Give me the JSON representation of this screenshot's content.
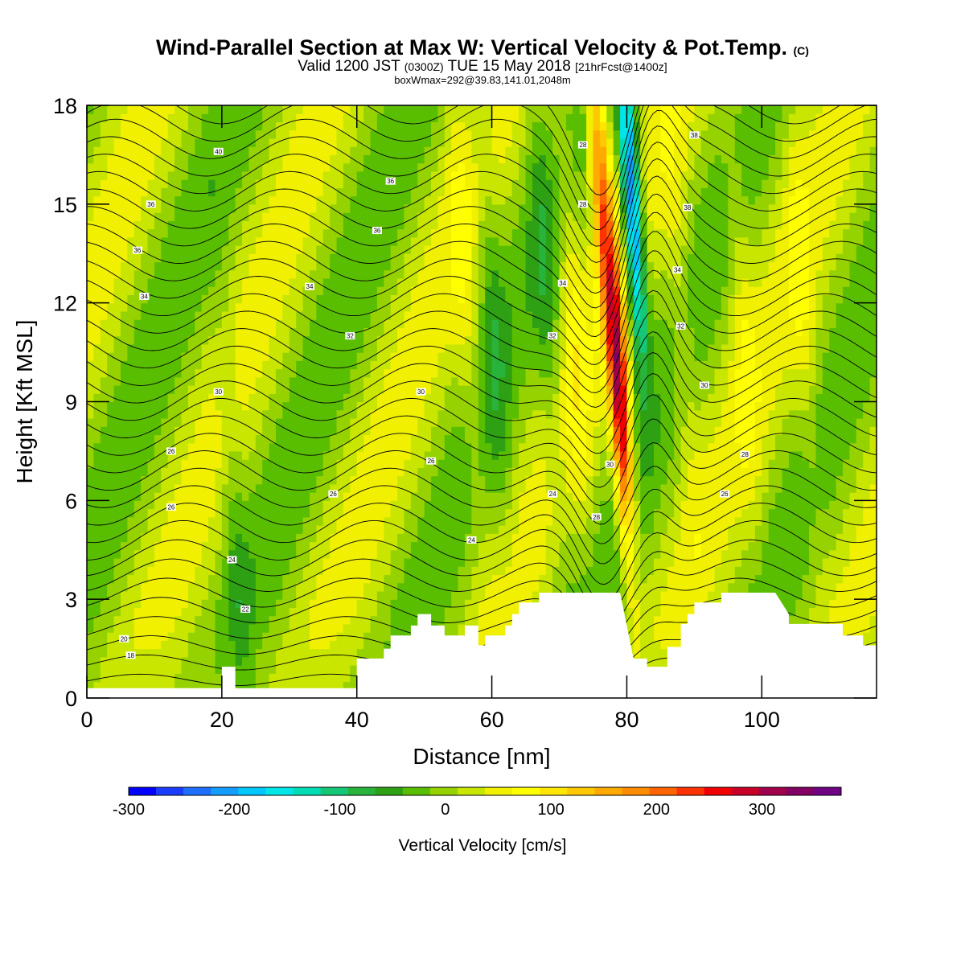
{
  "header": {
    "title": "Wind-Parallel Section at Max W: Vertical Velocity & Pot.Temp.",
    "title_mark": "(C)",
    "valid_prefix": "Valid 1200 JST",
    "valid_utc": "(0300Z)",
    "valid_date": "TUE 15 May 2018",
    "valid_fcst": "[21hrFcst@1400z]",
    "boxinfo": "boxWmax=292@39.83,141.01,2048m"
  },
  "chart_data": {
    "type": "heatmap",
    "xlabel": "Distance [nm]",
    "ylabel": "Height [Kft MSL]",
    "xlim": [
      0,
      117
    ],
    "ylim": [
      0,
      18
    ],
    "xticks": [
      0,
      20,
      40,
      60,
      80,
      100
    ],
    "yticks": [
      0,
      3,
      6,
      9,
      12,
      15,
      18
    ],
    "terrain": [
      [
        0,
        0.3
      ],
      [
        20,
        0.3
      ],
      [
        20,
        0.95
      ],
      [
        22,
        0.95
      ],
      [
        22,
        0.3
      ],
      [
        24,
        0.3
      ],
      [
        24,
        0.3
      ],
      [
        38,
        0.3
      ],
      [
        38,
        0.3
      ],
      [
        40,
        0.3
      ],
      [
        40,
        1.2
      ],
      [
        44,
        1.2
      ],
      [
        44,
        1.5
      ],
      [
        45,
        1.5
      ],
      [
        45,
        1.9
      ],
      [
        48,
        1.9
      ],
      [
        48,
        2.2
      ],
      [
        49,
        2.2
      ],
      [
        49,
        2.55
      ],
      [
        51,
        2.55
      ],
      [
        51,
        2.2
      ],
      [
        53,
        2.2
      ],
      [
        53,
        1.9
      ],
      [
        56,
        1.9
      ],
      [
        56,
        2.2
      ],
      [
        58,
        2.2
      ],
      [
        58,
        1.6
      ],
      [
        59,
        1.6
      ],
      [
        59,
        1.9
      ],
      [
        62,
        1.9
      ],
      [
        62,
        2.2
      ],
      [
        63,
        2.2
      ],
      [
        63,
        2.55
      ],
      [
        64,
        2.55
      ],
      [
        64,
        2.9
      ],
      [
        67,
        2.9
      ],
      [
        67,
        3.2
      ],
      [
        79,
        3.2
      ],
      [
        81,
        1.2
      ],
      [
        83,
        1.2
      ],
      [
        83,
        0.95
      ],
      [
        86,
        0.95
      ],
      [
        86,
        1.55
      ],
      [
        88,
        1.55
      ],
      [
        88,
        2.25
      ],
      [
        89,
        2.25
      ],
      [
        89,
        2.55
      ],
      [
        90,
        2.55
      ],
      [
        90,
        2.9
      ],
      [
        94,
        2.9
      ],
      [
        94,
        3.2
      ],
      [
        102,
        3.2
      ],
      [
        104,
        2.55
      ],
      [
        104,
        2.25
      ],
      [
        112,
        2.25
      ],
      [
        112,
        1.9
      ],
      [
        115,
        1.9
      ],
      [
        115,
        1.6
      ],
      [
        117,
        1.6
      ]
    ],
    "w_colorbar": {
      "title": "Vertical Velocity [cm/s]",
      "tick_labels": [
        "-300",
        "-200",
        "-100",
        "0",
        "100",
        "200",
        "300"
      ],
      "tick_values": [
        -300,
        -200,
        -100,
        0,
        100,
        200,
        300
      ],
      "range": [
        -300,
        375
      ],
      "colors": [
        "#0000ff",
        "#1a3cff",
        "#1e6eff",
        "#139dff",
        "#00c8ff",
        "#00e6e6",
        "#00dcb4",
        "#14c878",
        "#28b43c",
        "#2ea014",
        "#5abe00",
        "#96d200",
        "#c8e600",
        "#f0f000",
        "#ffff00",
        "#ffe600",
        "#ffc800",
        "#ffaa00",
        "#ff8c00",
        "#ff6400",
        "#ff3200",
        "#f00000",
        "#c80028",
        "#a0004b",
        "#820064",
        "#6e0082"
      ]
    },
    "w_features": [
      {
        "x": 79,
        "z": 9,
        "w": 292
      },
      {
        "x": 76,
        "z": 16,
        "w": 180
      },
      {
        "x": 80.8,
        "z": 15,
        "w": -260
      },
      {
        "x": 22,
        "z": 5,
        "w": -60
      },
      {
        "x": 56,
        "z": 12,
        "w": 60
      },
      {
        "x": 60,
        "z": 12,
        "w": -70
      },
      {
        "x": 68,
        "z": 12,
        "w": -70
      },
      {
        "x": 72,
        "z": 12,
        "w": 80
      },
      {
        "x": 88,
        "z": 12,
        "w": 60
      },
      {
        "x": 97,
        "z": 12,
        "w": 60
      },
      {
        "x": 106,
        "z": 12,
        "w": 60
      }
    ],
    "theta_labels": [
      {
        "x": 19.5,
        "z": 16.6,
        "text": "40"
      },
      {
        "x": 9.5,
        "z": 15.0,
        "text": "36"
      },
      {
        "x": 45,
        "z": 15.7,
        "text": "36"
      },
      {
        "x": 7.5,
        "z": 13.6,
        "text": "36"
      },
      {
        "x": 43,
        "z": 14.2,
        "text": "36"
      },
      {
        "x": 8.5,
        "z": 12.2,
        "text": "34"
      },
      {
        "x": 33,
        "z": 12.5,
        "text": "34"
      },
      {
        "x": 39,
        "z": 11.0,
        "text": "32"
      },
      {
        "x": 19.5,
        "z": 9.3,
        "text": "30"
      },
      {
        "x": 49.5,
        "z": 9.3,
        "text": "30"
      },
      {
        "x": 12.5,
        "z": 7.5,
        "text": "26"
      },
      {
        "x": 51,
        "z": 7.2,
        "text": "26"
      },
      {
        "x": 12.5,
        "z": 5.8,
        "text": "26"
      },
      {
        "x": 36.5,
        "z": 6.2,
        "text": "26"
      },
      {
        "x": 21.5,
        "z": 4.2,
        "text": "24"
      },
      {
        "x": 57,
        "z": 4.8,
        "text": "24"
      },
      {
        "x": 23.5,
        "z": 2.7,
        "text": "22"
      },
      {
        "x": 5.5,
        "z": 1.8,
        "text": "20"
      },
      {
        "x": 6.5,
        "z": 1.3,
        "text": "18"
      },
      {
        "x": 73.5,
        "z": 16.8,
        "text": "28"
      },
      {
        "x": 73.5,
        "z": 15.0,
        "text": "28"
      },
      {
        "x": 70.5,
        "z": 12.6,
        "text": "34"
      },
      {
        "x": 69,
        "z": 11.0,
        "text": "32"
      },
      {
        "x": 69,
        "z": 6.2,
        "text": "24"
      },
      {
        "x": 75.5,
        "z": 5.5,
        "text": "28"
      },
      {
        "x": 77.5,
        "z": 7.1,
        "text": "30"
      },
      {
        "x": 90,
        "z": 17.1,
        "text": "38"
      },
      {
        "x": 89,
        "z": 14.9,
        "text": "38"
      },
      {
        "x": 87.5,
        "z": 13.0,
        "text": "34"
      },
      {
        "x": 88,
        "z": 11.3,
        "text": "32"
      },
      {
        "x": 91.5,
        "z": 9.5,
        "text": "30"
      },
      {
        "x": 97.5,
        "z": 7.4,
        "text": "28"
      },
      {
        "x": 94.5,
        "z": 6.2,
        "text": "26"
      }
    ]
  }
}
